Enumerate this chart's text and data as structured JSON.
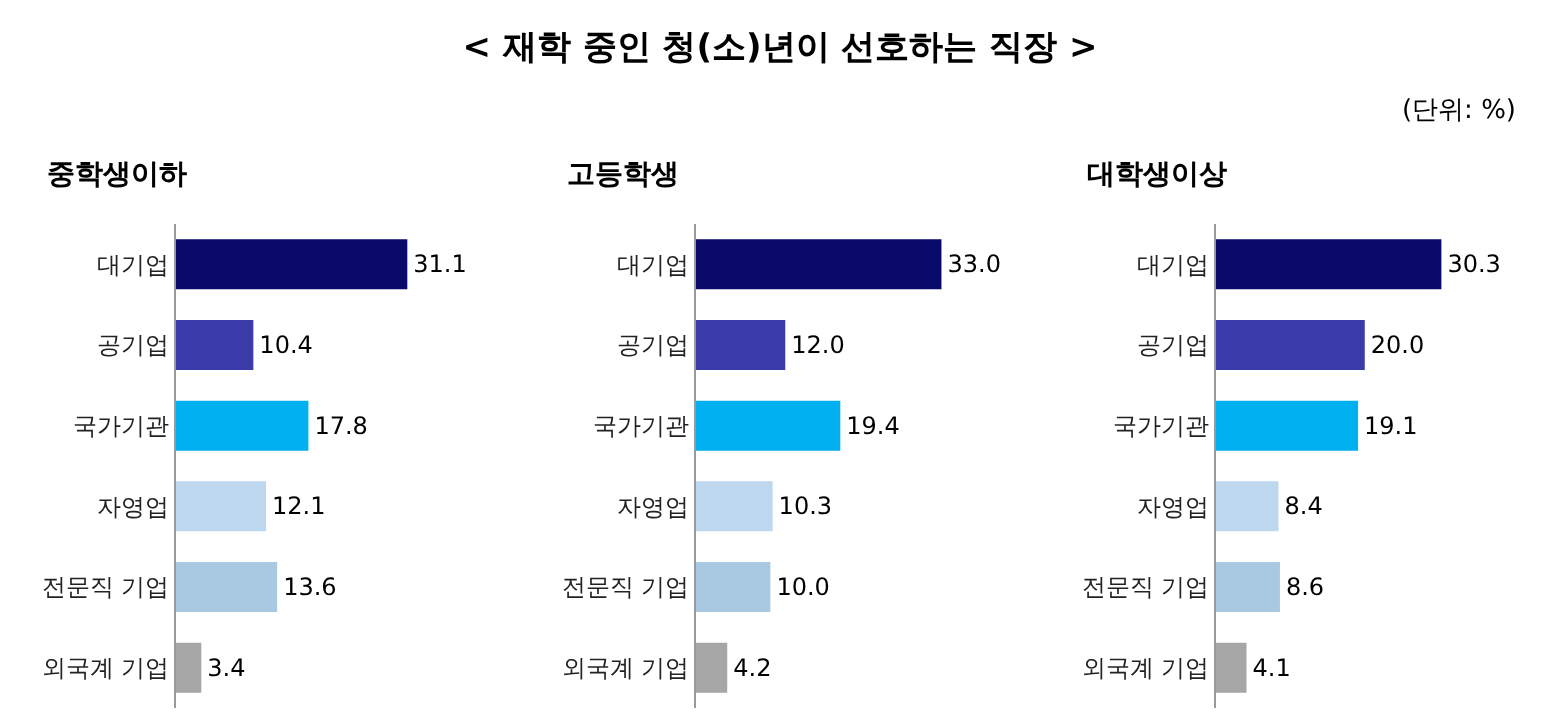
{
  "chart_data": [
    {
      "type": "bar",
      "orientation": "horizontal",
      "title": "중학생이하",
      "annotations": [
        "< 재학 중인 청(소)년이 선호하는 직장 >",
        "(단위: %)"
      ],
      "categories": [
        "대기업",
        "공기업",
        "국가기관",
        "자영업",
        "전문직 기업",
        "외국계 기업"
      ],
      "values": [
        31.1,
        10.4,
        17.8,
        12.1,
        13.6,
        3.4
      ],
      "value_labels": [
        "31.1",
        "10.4",
        "17.8",
        "12.1",
        "13.6",
        "3.4"
      ],
      "colors": [
        "#0a0a6b",
        "#3a3aa8",
        "#00b0f0",
        "#bdd7ee",
        "#a9c9e3",
        "#a6a6a6"
      ],
      "tick_labels": "y",
      "grid": false,
      "legend": false
    },
    {
      "type": "bar",
      "orientation": "horizontal",
      "title": "고등학생",
      "categories": [
        "대기업",
        "공기업",
        "국가기관",
        "자영업",
        "전문직 기업",
        "외국계 기업"
      ],
      "values": [
        33.0,
        12.0,
        19.4,
        10.3,
        10.0,
        4.2
      ],
      "value_labels": [
        "33.0",
        "12.0",
        "19.4",
        "10.3",
        "10.0",
        "4.2"
      ],
      "colors": [
        "#0a0a6b",
        "#3a3aa8",
        "#00b0f0",
        "#bdd7ee",
        "#a9c9e3",
        "#a6a6a6"
      ],
      "tick_labels": "y",
      "grid": false,
      "legend": false
    },
    {
      "type": "bar",
      "orientation": "horizontal",
      "title": "대학생이상",
      "categories": [
        "대기업",
        "공기업",
        "국가기관",
        "자영업",
        "전문직 기업",
        "외국계 기업"
      ],
      "values": [
        30.3,
        20.0,
        19.1,
        8.4,
        8.6,
        4.1
      ],
      "value_labels": [
        "30.3",
        "20.0",
        "19.1",
        "8.4",
        "8.6",
        "4.1"
      ],
      "colors": [
        "#0a0a6b",
        "#3a3aa8",
        "#00b0f0",
        "#bdd7ee",
        "#a9c9e3",
        "#a6a6a6"
      ],
      "tick_labels": "y",
      "grid": false,
      "legend": false
    }
  ]
}
